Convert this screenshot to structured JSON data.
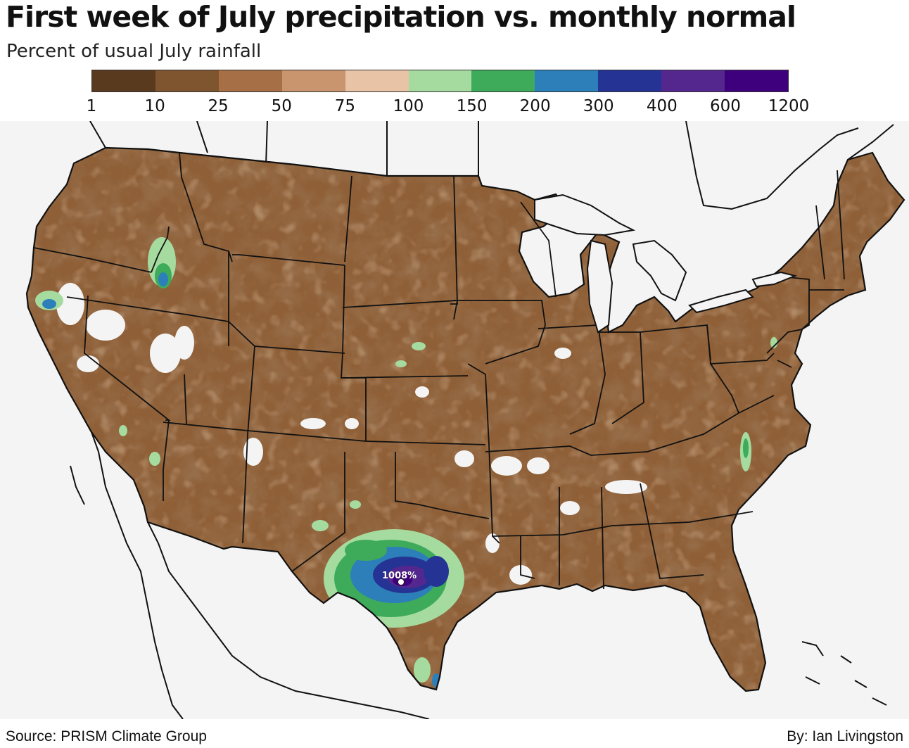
{
  "title": "First week of July precipitation vs. monthly normal",
  "subtitle": "Percent of usual July rainfall",
  "legend": {
    "ticks": [
      "1",
      "10",
      "25",
      "50",
      "75",
      "100",
      "150",
      "200",
      "300",
      "400",
      "600",
      "1200"
    ],
    "colors": [
      "#5a3a1e",
      "#7f5530",
      "#a66f45",
      "#c8956f",
      "#e8c3a5",
      "#a6dba0",
      "#3eab5b",
      "#2c7fb8",
      "#253494",
      "#54278f",
      "#3f007d"
    ]
  },
  "map": {
    "background_color": "#f4f4f4",
    "land_base_color": "#8f6038",
    "peak_label": "1008%"
  },
  "footer": {
    "source": "Source: PRISM Climate Group",
    "byline": "By: Ian Livingston"
  }
}
